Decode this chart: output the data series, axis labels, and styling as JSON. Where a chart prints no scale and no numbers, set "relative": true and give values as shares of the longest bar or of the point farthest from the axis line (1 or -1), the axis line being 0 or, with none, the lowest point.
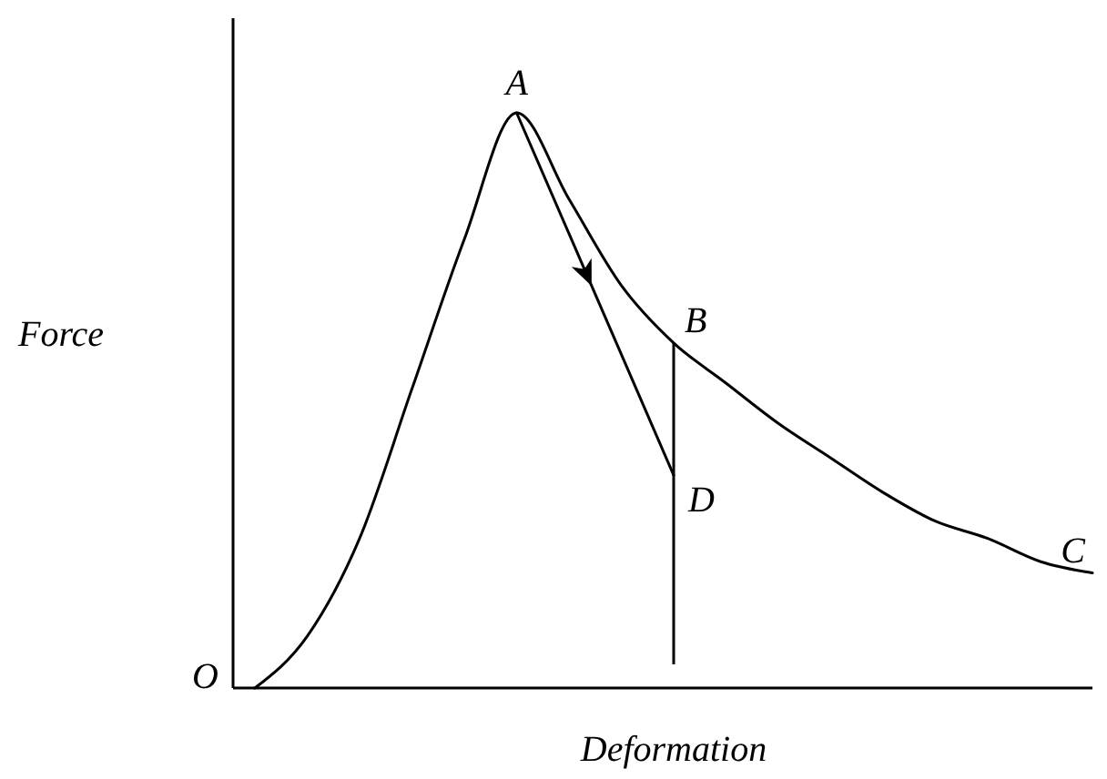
{
  "chart_data": {
    "type": "line",
    "relative": true,
    "xlabel": "Deformation",
    "ylabel": "Force",
    "categories": [
      null,
      null,
      null,
      null,
      null,
      null,
      null,
      null,
      null,
      null,
      null,
      null,
      null,
      null,
      null,
      null,
      null
    ],
    "series": [
      {
        "color": "#000000",
        "values": [
          0,
          0.09,
          0.26,
          0.52,
          0.78,
          1.0,
          0.85,
          0.7,
          0.6,
          0.53,
          0.46,
          0.4,
          0.34,
          0.29,
          0.26,
          0.22,
          0.2
        ]
      },
      {
        "color": "#000000",
        "values": [
          null,
          null,
          null,
          null,
          null,
          1.0,
          0.79,
          0.58,
          0.37,
          null,
          null,
          null,
          null,
          null,
          null,
          null,
          null
        ]
      }
    ],
    "annotations": [
      "A",
      "B",
      "C",
      "D",
      "O"
    ]
  }
}
